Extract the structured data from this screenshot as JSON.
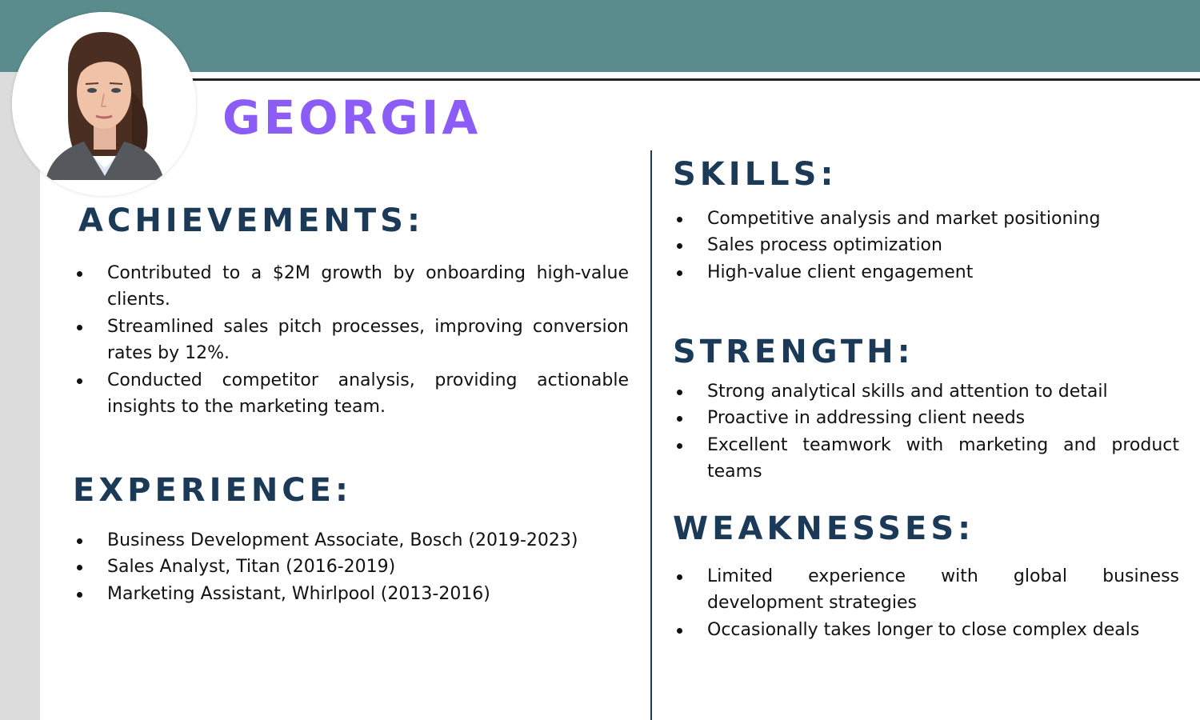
{
  "profile": {
    "name": "GEORGIA"
  },
  "sections": {
    "achievements": {
      "title": "ACHIEVEMENTS:",
      "items": [
        "Contributed to a $2M growth by onboarding high-value clients.",
        "Streamlined sales pitch processes, improving conversion rates by 12%.",
        "Conducted competitor analysis, providing actionable insights to the marketing team."
      ]
    },
    "experience": {
      "title": "EXPERIENCE:",
      "items": [
        "Business Development Associate, Bosch (2019-2023)",
        "Sales Analyst, Titan (2016-2019)",
        "Marketing Assistant, Whirlpool (2013-2016)"
      ]
    },
    "skills": {
      "title": "SKILLS:",
      "items": [
        "Competitive analysis and market positioning",
        "Sales process optimization",
        "High-value client engagement"
      ]
    },
    "strength": {
      "title": "STRENGTH:",
      "items": [
        "Strong analytical skills and attention to detail",
        "Proactive in addressing client needs",
        "Excellent teamwork with marketing and product teams"
      ]
    },
    "weaknesses": {
      "title": "WEAKNESSES:",
      "items": [
        "Limited experience with global business development strategies",
        "Occasionally takes longer to close complex deals"
      ]
    }
  },
  "colors": {
    "banner": "#5b8c8d",
    "name": "#8b5cf6",
    "heading": "#1b3a57",
    "side_strip": "#dcdcdc"
  }
}
